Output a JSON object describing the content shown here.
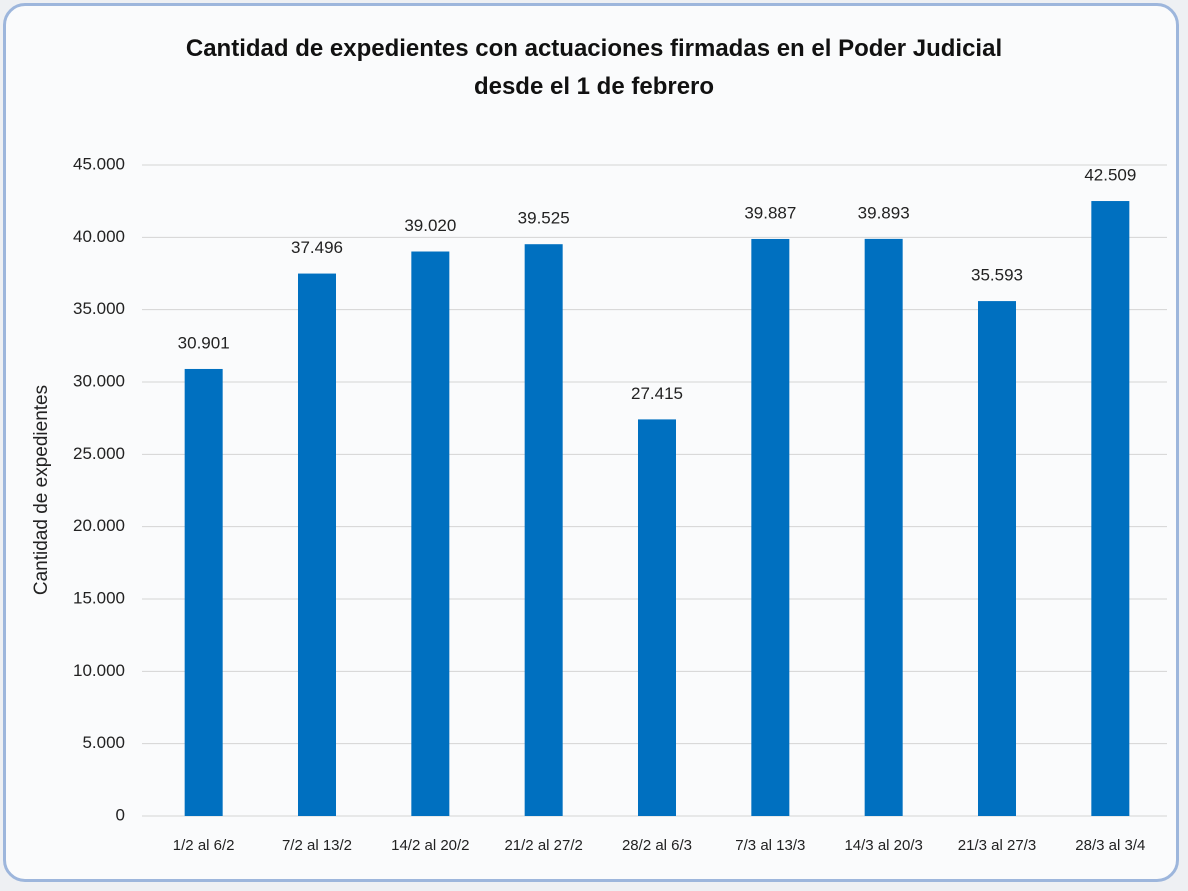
{
  "chart_data": {
    "type": "bar",
    "title": "Cantidad de expedientes con actuaciones firmadas en el Poder Judicial desde el 1 de febrero",
    "ylabel": "Cantidad de expedientes",
    "categories": [
      "1/2 al 6/2",
      "7/2 al 13/2",
      "14/2 al 20/2",
      "21/2 al 27/2",
      "28/2 al 6/3",
      "7/3 al 13/3",
      "14/3 al 20/3",
      "21/3 al 27/3",
      "28/3 al 3/4"
    ],
    "values": [
      30901,
      37496,
      39020,
      39525,
      27415,
      39887,
      39893,
      35593,
      42509
    ],
    "value_labels": [
      "30.901",
      "37.496",
      "39.020",
      "39.525",
      "27.415",
      "39.887",
      "39.893",
      "35.593",
      "42.509"
    ],
    "color": "#0070c0",
    "ylim": [
      0,
      45000
    ],
    "yticks": [
      {
        "value": 0,
        "label": "0"
      },
      {
        "value": 5000,
        "label": "5.000"
      },
      {
        "value": 10000,
        "label": "10.000"
      },
      {
        "value": 15000,
        "label": "15.000"
      },
      {
        "value": 20000,
        "label": "20.000"
      },
      {
        "value": 25000,
        "label": "25.000"
      },
      {
        "value": 30000,
        "label": "30.000"
      },
      {
        "value": 35000,
        "label": "35.000"
      },
      {
        "value": 40000,
        "label": "40.000"
      },
      {
        "value": 45000,
        "label": "45.000"
      }
    ],
    "grid": true
  }
}
